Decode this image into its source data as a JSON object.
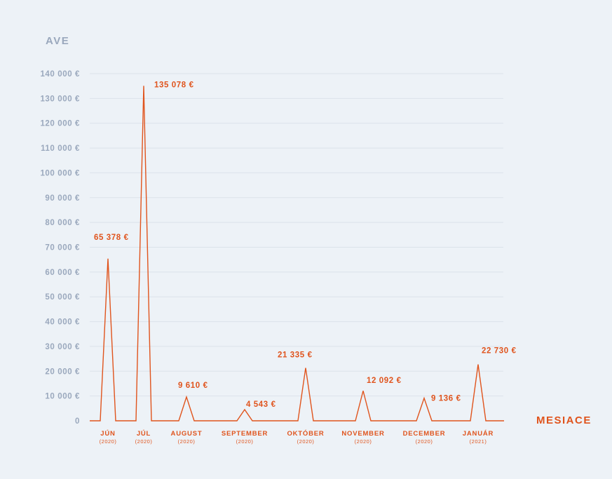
{
  "chart_data": {
    "type": "line",
    "ylabel": "AVE",
    "xlabel": "MESIACE",
    "ylim": [
      0,
      140000
    ],
    "y_ticks": [
      {
        "value": 0,
        "label": "0"
      },
      {
        "value": 10000,
        "label": "10 000 €"
      },
      {
        "value": 20000,
        "label": "20 000 €"
      },
      {
        "value": 30000,
        "label": "30 000 €"
      },
      {
        "value": 40000,
        "label": "40 000 €"
      },
      {
        "value": 50000,
        "label": "50 000 €"
      },
      {
        "value": 60000,
        "label": "60 000 €"
      },
      {
        "value": 70000,
        "label": "70 000 €"
      },
      {
        "value": 80000,
        "label": "80 000 €"
      },
      {
        "value": 90000,
        "label": "90 000 €"
      },
      {
        "value": 100000,
        "label": "100 000 €"
      },
      {
        "value": 110000,
        "label": "110 000 €"
      },
      {
        "value": 120000,
        "label": "120 000 €"
      },
      {
        "value": 130000,
        "label": "130 000 €"
      },
      {
        "value": 140000,
        "label": "140 000 €"
      }
    ],
    "categories": [
      {
        "month": "JÚN",
        "year": "(2020)"
      },
      {
        "month": "JÚL",
        "year": "(2020)"
      },
      {
        "month": "AUGUST",
        "year": "(2020)"
      },
      {
        "month": "SEPTEMBER",
        "year": "(2020)"
      },
      {
        "month": "OKTÓBER",
        "year": "(2020)"
      },
      {
        "month": "NOVEMBER",
        "year": "(2020)"
      },
      {
        "month": "DECEMBER",
        "year": "(2020)"
      },
      {
        "month": "JANUÁR",
        "year": "(2021)"
      }
    ],
    "values": [
      65378,
      135078,
      9610,
      4543,
      21335,
      12092,
      9136,
      22730
    ],
    "data_labels": [
      "65 378 €",
      "135 078 €",
      "9 610 €",
      "4 543 €",
      "21 335 €",
      "12 092 €",
      "9 136 €",
      "22 730 €"
    ],
    "grid": true,
    "colors": {
      "line": "#e0541d",
      "axis_text": "#9aa8bd",
      "grid": "#dbe2ea",
      "background": "#edf2f7"
    }
  }
}
